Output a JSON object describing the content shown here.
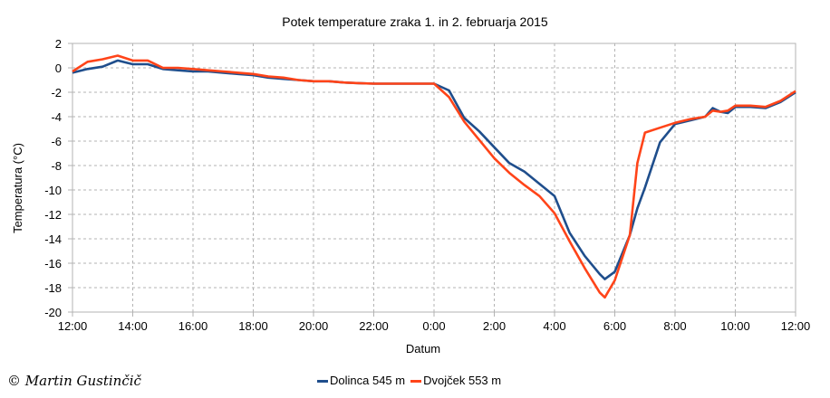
{
  "chart_data": {
    "type": "line",
    "title": "Potek temperature zraka 1. in 2. februarja 2015",
    "xlabel": "Datum",
    "ylabel": "Temperatura (°C)",
    "ylim": [
      -20,
      2
    ],
    "yticks": [
      "2",
      "0",
      "-2",
      "-4",
      "-6",
      "-8",
      "-10",
      "-12",
      "-14",
      "-16",
      "-18",
      "-20"
    ],
    "xlim_hours": [
      0,
      24
    ],
    "xticks": [
      "12:00",
      "14:00",
      "16:00",
      "18:00",
      "20:00",
      "22:00",
      "0:00",
      "2:00",
      "4:00",
      "6:00",
      "8:00",
      "10:00",
      "12:00"
    ],
    "grid": true,
    "legend_position": "bottom",
    "x_hours": [
      0,
      0.5,
      1,
      1.5,
      2,
      2.5,
      3,
      3.5,
      4,
      4.5,
      5,
      5.5,
      6,
      6.5,
      7,
      7.5,
      8,
      8.5,
      9,
      9.5,
      10,
      10.5,
      11,
      11.5,
      12,
      12.5,
      13,
      13.5,
      14,
      14.5,
      15,
      15.5,
      16,
      16.5,
      17,
      17.5,
      17.67,
      18,
      18.5,
      18.75,
      19,
      19.5,
      20,
      20.5,
      21,
      21.25,
      21.5,
      21.75,
      22,
      22.5,
      23,
      23.5,
      24
    ],
    "series": [
      {
        "name": "Dolinca 545 m",
        "color": "#1f4e8c",
        "values": [
          -0.4,
          -0.1,
          0.1,
          0.6,
          0.3,
          0.3,
          -0.1,
          -0.2,
          -0.3,
          -0.3,
          -0.4,
          -0.5,
          -0.6,
          -0.8,
          -0.9,
          -1.0,
          -1.1,
          -1.1,
          -1.2,
          -1.25,
          -1.3,
          -1.3,
          -1.3,
          -1.3,
          -1.3,
          -1.85,
          -4.1,
          -5.2,
          -6.5,
          -7.8,
          -8.5,
          -9.5,
          -10.5,
          -13.5,
          -15.4,
          -16.9,
          -17.3,
          -16.7,
          -13.7,
          -11.5,
          -9.8,
          -6.1,
          -4.6,
          -4.3,
          -4.0,
          -3.3,
          -3.6,
          -3.7,
          -3.2,
          -3.2,
          -3.3,
          -2.8,
          -2.0
        ]
      },
      {
        "name": "Dvojček 553 m",
        "color": "#ff4419",
        "values": [
          -0.3,
          0.5,
          0.7,
          1.0,
          0.6,
          0.6,
          0.0,
          0.0,
          -0.1,
          -0.2,
          -0.3,
          -0.4,
          -0.5,
          -0.7,
          -0.8,
          -1.0,
          -1.1,
          -1.1,
          -1.2,
          -1.25,
          -1.3,
          -1.3,
          -1.3,
          -1.3,
          -1.3,
          -2.4,
          -4.4,
          -5.9,
          -7.4,
          -8.6,
          -9.6,
          -10.5,
          -11.9,
          -14.2,
          -16.4,
          -18.4,
          -18.8,
          -17.4,
          -13.7,
          -7.8,
          -5.3,
          -4.9,
          -4.5,
          -4.2,
          -4.0,
          -3.5,
          -3.6,
          -3.5,
          -3.1,
          -3.1,
          -3.2,
          -2.7,
          -1.9
        ]
      }
    ]
  },
  "credit": "© Martin Gustinčič"
}
